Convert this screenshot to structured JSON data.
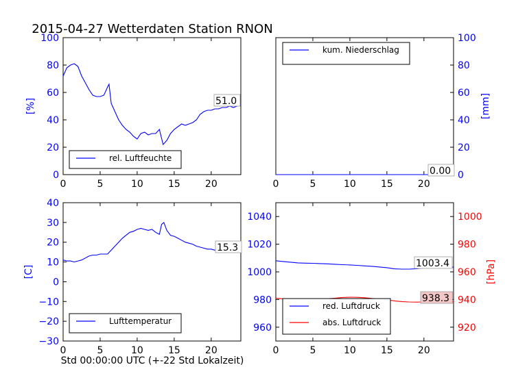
{
  "figure": {
    "title": "2015-04-27 Wetterdaten Station RNON",
    "xlabel_bottom": "Std 00:00:00 UTC (+-22 Std Lokalzeit)"
  },
  "colors": {
    "blue": "#0000ff",
    "red": "#ff0000",
    "axis": "#000000"
  },
  "chart_data": [
    {
      "id": "humidity",
      "type": "line",
      "ylabel": "[%]",
      "xlim": [
        0,
        24
      ],
      "ylim": [
        0,
        100
      ],
      "xticks": [
        "0",
        "5",
        "10",
        "15",
        "20"
      ],
      "yticks": [
        "0",
        "20",
        "40",
        "60",
        "80",
        "100"
      ],
      "series": [
        {
          "name": "rel. Luftfeuchte",
          "color": "#0000ff",
          "x": [
            0,
            0.5,
            1,
            1.5,
            2,
            2.5,
            3,
            3.5,
            4,
            4.5,
            5,
            5.5,
            6,
            6.2,
            6.5,
            7,
            7.5,
            8,
            8.5,
            9,
            9.5,
            10,
            10.5,
            11,
            11.5,
            12,
            12.5,
            13,
            13.5,
            14,
            14.5,
            15,
            15.5,
            16,
            16.5,
            17,
            17.5,
            18,
            18.5,
            19,
            19.5,
            20,
            20.5,
            21,
            21.5,
            22,
            22.5,
            23,
            23.5,
            24
          ],
          "y": [
            72,
            78,
            80,
            81,
            79,
            72,
            67,
            62,
            58,
            57,
            57,
            58,
            64,
            66,
            52,
            46,
            40,
            36,
            33,
            31,
            28,
            26,
            30,
            31,
            29,
            30,
            30,
            33,
            22,
            25,
            30,
            33,
            35,
            37,
            36,
            37,
            38,
            40,
            44,
            46,
            47,
            47,
            48,
            48,
            49,
            49,
            50,
            49,
            50,
            51
          ]
        }
      ],
      "annotation": "51.0",
      "legend": "bottom-left"
    },
    {
      "id": "precip",
      "type": "line",
      "ylabel": "[mm]",
      "xlim": [
        0,
        24
      ],
      "ylim": [
        0,
        100
      ],
      "xticks": [
        "0",
        "5",
        "10",
        "15",
        "20"
      ],
      "yticks": [
        "0",
        "20",
        "40",
        "60",
        "80",
        "100"
      ],
      "series": [
        {
          "name": "kum. Niederschlag",
          "color": "#0000ff",
          "x": [
            0,
            24
          ],
          "y": [
            0,
            0
          ]
        }
      ],
      "annotation": "0.00",
      "legend": "top-left"
    },
    {
      "id": "temperature",
      "type": "line",
      "ylabel": "[C]",
      "xlim": [
        0,
        24
      ],
      "ylim": [
        -30,
        40
      ],
      "xticks": [
        "0",
        "5",
        "10",
        "15",
        "20"
      ],
      "yticks": [
        "−30",
        "−20",
        "−10",
        "0",
        "10",
        "20",
        "30",
        "40"
      ],
      "series": [
        {
          "name": "Lufttemperatur",
          "color": "#0000ff",
          "x": [
            0,
            0.5,
            1,
            1.5,
            2,
            2.5,
            3,
            3.5,
            4,
            4.5,
            5,
            5.5,
            6,
            6.5,
            7,
            7.5,
            8,
            8.5,
            9,
            9.5,
            10,
            10.5,
            11,
            11.5,
            12,
            12.5,
            13,
            13.3,
            13.6,
            14,
            14.5,
            15,
            15.5,
            16,
            16.5,
            17,
            17.5,
            18,
            18.5,
            19,
            19.5,
            20,
            20.5,
            21,
            21.5,
            22,
            22.5,
            23,
            23.5,
            24
          ],
          "y": [
            11,
            10.5,
            10.5,
            10,
            10.5,
            11,
            12,
            13,
            13.5,
            13.5,
            14,
            14,
            14,
            16,
            18,
            20,
            22,
            23.5,
            25,
            25.5,
            26.5,
            27,
            26.5,
            26,
            26.5,
            25,
            24,
            29,
            30,
            26,
            23.5,
            23,
            22,
            21,
            20,
            19.5,
            19,
            18,
            17.5,
            17,
            16.5,
            16.5,
            16,
            16,
            15.7,
            15.5,
            15.5,
            15.3,
            15.3,
            15.3
          ]
        }
      ],
      "annotation": "15.3",
      "legend": "bottom-left"
    },
    {
      "id": "pressure",
      "type": "line",
      "xlim": [
        0,
        24
      ],
      "ylim_left": [
        950,
        1050
      ],
      "ylim_right": [
        910,
        1010
      ],
      "ylabel_right": "[hPa]",
      "xticks": [
        "0",
        "5",
        "10",
        "15",
        "20"
      ],
      "yticks_left": [
        "960",
        "980",
        "1000",
        "1020",
        "1040"
      ],
      "yticks_right": [
        "920",
        "940",
        "960",
        "980",
        "1000"
      ],
      "series": [
        {
          "name": "red. Luftdruck",
          "color": "#0000ff",
          "axis": "left",
          "x": [
            0,
            1,
            2,
            3,
            4,
            5,
            6,
            7,
            8,
            9,
            10,
            11,
            12,
            13,
            14,
            15,
            16,
            17,
            18,
            19,
            20,
            21,
            22,
            23,
            24
          ],
          "y": [
            1008,
            1007.5,
            1007,
            1006.5,
            1006.3,
            1006.2,
            1006,
            1005.8,
            1005.5,
            1005.2,
            1005,
            1004.7,
            1004.3,
            1004,
            1003.5,
            1003,
            1002.2,
            1002,
            1002,
            1002.3,
            1002.8,
            1003.2,
            1003.4,
            1003.4,
            1003.4
          ]
        },
        {
          "name": "abs. Luftdruck",
          "color": "#ff0000",
          "axis": "right",
          "x": [
            0,
            1,
            2,
            3,
            4,
            5,
            6,
            7,
            8,
            9,
            10,
            11,
            12,
            13,
            14,
            15,
            16,
            17,
            18,
            19,
            20,
            21,
            22,
            23,
            24
          ],
          "y": [
            941,
            940.5,
            940.2,
            940,
            940.2,
            940.3,
            940.4,
            940.6,
            941,
            941.5,
            941.7,
            941.6,
            941.3,
            940.8,
            940.5,
            939.8,
            939,
            938.5,
            938.2,
            938.1,
            938.2,
            938.3,
            938.3,
            938.3,
            938.3
          ]
        }
      ],
      "annotations": [
        "1003.4",
        "938.3"
      ],
      "legend": "bottom-left"
    }
  ]
}
